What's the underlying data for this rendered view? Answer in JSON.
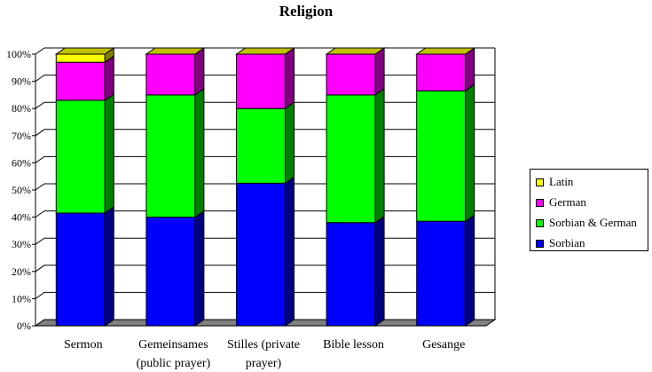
{
  "chart_data": {
    "type": "bar",
    "stacked": true,
    "percent": true,
    "three_d": true,
    "title": "Religion",
    "categories": [
      [
        "Sermon"
      ],
      [
        "Gemeinsames",
        "(public prayer)"
      ],
      [
        "Stilles (private",
        "prayer)"
      ],
      [
        "Bible lesson"
      ],
      [
        "Gesange"
      ]
    ],
    "yticks": [
      "0%",
      "10%",
      "20%",
      "30%",
      "40%",
      "50%",
      "60%",
      "70%",
      "80%",
      "90%",
      "100%"
    ],
    "ylim": [
      0,
      100
    ],
    "grid": true,
    "legend_position": "right",
    "series": [
      {
        "name": "Sorbian",
        "color": "#0000FF",
        "side_color": "#000080",
        "values": [
          41.5,
          40,
          52.5,
          38,
          38.5
        ]
      },
      {
        "name": "Sorbian & German",
        "color": "#00FF00",
        "side_color": "#008000",
        "values": [
          41.5,
          45,
          27.5,
          47,
          48
        ]
      },
      {
        "name": "German",
        "color": "#FF00FF",
        "side_color": "#800080",
        "values": [
          14,
          15,
          20,
          15,
          13.5
        ]
      },
      {
        "name": "Latin",
        "color": "#FFFF00",
        "side_color": "#808000",
        "values": [
          3,
          0,
          0,
          0,
          0
        ]
      }
    ],
    "legend_order": [
      "Latin",
      "German",
      "Sorbian & German",
      "Sorbian"
    ]
  }
}
